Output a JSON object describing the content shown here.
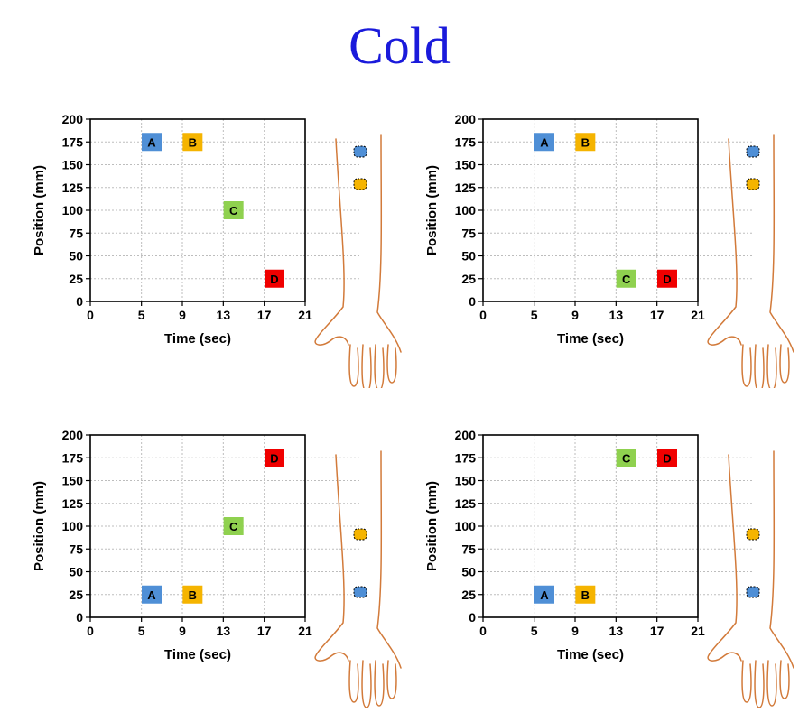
{
  "title": "Cold",
  "colors": {
    "title": "#1a1adb",
    "A": "#4f8fd6",
    "B": "#f5b400",
    "C": "#8fd14f",
    "D": "#f00000",
    "arm": "#d27a3a"
  },
  "chart_data": [
    {
      "type": "scatter",
      "xlabel": "Time (sec)",
      "ylabel": "Position (mm)",
      "xlim": [
        0,
        21
      ],
      "ylim": [
        0,
        200
      ],
      "xticks": [
        0,
        5,
        9,
        13,
        17,
        21
      ],
      "yticks": [
        0,
        25,
        50,
        75,
        100,
        125,
        150,
        175,
        200
      ],
      "grid": true,
      "points": [
        {
          "label": "A",
          "x": 6,
          "y": 175
        },
        {
          "label": "B",
          "x": 10,
          "y": 175
        },
        {
          "label": "C",
          "x": 14,
          "y": 100
        },
        {
          "label": "D",
          "x": 18,
          "y": 25
        }
      ],
      "arm_markers": [
        {
          "color": "A",
          "position": "upper"
        },
        {
          "color": "B",
          "position": "lower"
        }
      ]
    },
    {
      "type": "scatter",
      "xlabel": "Time (sec)",
      "ylabel": "Position (mm)",
      "xlim": [
        0,
        21
      ],
      "ylim": [
        0,
        200
      ],
      "xticks": [
        0,
        5,
        9,
        13,
        17,
        21
      ],
      "yticks": [
        0,
        25,
        50,
        75,
        100,
        125,
        150,
        175,
        200
      ],
      "grid": true,
      "points": [
        {
          "label": "A",
          "x": 6,
          "y": 175
        },
        {
          "label": "B",
          "x": 10,
          "y": 175
        },
        {
          "label": "C",
          "x": 14,
          "y": 25
        },
        {
          "label": "D",
          "x": 18,
          "y": 25
        }
      ],
      "arm_markers": [
        {
          "color": "A",
          "position": "upper"
        },
        {
          "color": "B",
          "position": "lower"
        }
      ]
    },
    {
      "type": "scatter",
      "xlabel": "Time (sec)",
      "ylabel": "Position (mm)",
      "xlim": [
        0,
        21
      ],
      "ylim": [
        0,
        200
      ],
      "xticks": [
        0,
        5,
        9,
        13,
        17,
        21
      ],
      "yticks": [
        0,
        25,
        50,
        75,
        100,
        125,
        150,
        175,
        200
      ],
      "grid": true,
      "points": [
        {
          "label": "A",
          "x": 6,
          "y": 25
        },
        {
          "label": "B",
          "x": 10,
          "y": 25
        },
        {
          "label": "C",
          "x": 14,
          "y": 100
        },
        {
          "label": "D",
          "x": 18,
          "y": 175
        }
      ],
      "arm_markers": [
        {
          "color": "B",
          "position": "upper"
        },
        {
          "color": "A",
          "position": "lower"
        }
      ]
    },
    {
      "type": "scatter",
      "xlabel": "Time (sec)",
      "ylabel": "Position (mm)",
      "xlim": [
        0,
        21
      ],
      "ylim": [
        0,
        200
      ],
      "xticks": [
        0,
        5,
        9,
        13,
        17,
        21
      ],
      "yticks": [
        0,
        25,
        50,
        75,
        100,
        125,
        150,
        175,
        200
      ],
      "grid": true,
      "points": [
        {
          "label": "A",
          "x": 6,
          "y": 25
        },
        {
          "label": "B",
          "x": 10,
          "y": 25
        },
        {
          "label": "C",
          "x": 14,
          "y": 175
        },
        {
          "label": "D",
          "x": 18,
          "y": 175
        }
      ],
      "arm_markers": [
        {
          "color": "B",
          "position": "upper"
        },
        {
          "color": "A",
          "position": "lower"
        }
      ]
    }
  ]
}
